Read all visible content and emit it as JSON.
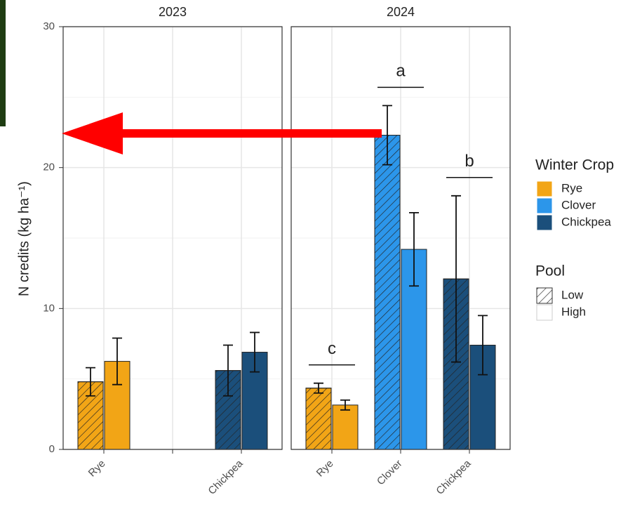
{
  "chart_data": {
    "type": "bar",
    "ylabel": "N credits (kg ha⁻¹)",
    "ylim": [
      0,
      30
    ],
    "yticks": [
      0,
      10,
      20,
      30
    ],
    "minor_yticks": [
      5,
      15,
      25
    ],
    "grid": true,
    "legend": {
      "title": "Winter Crop",
      "items": [
        {
          "name": "Rye",
          "color": "#f2a516"
        },
        {
          "name": "Clover",
          "color": "#2c96ea"
        },
        {
          "name": "Chickpea",
          "color": "#1b4f7b"
        }
      ]
    },
    "pool_legend_title": "Pool",
    "facets": [
      {
        "title": "2023",
        "categories": [
          "Rye",
          null,
          "Chickpea"
        ],
        "colors": [
          "#f2a516",
          null,
          "#1b4f7b"
        ],
        "series": [
          {
            "name": "Low",
            "hatch": true,
            "values": [
              4.8,
              null,
              5.6
            ],
            "errors": [
              1.0,
              null,
              1.8
            ]
          },
          {
            "name": "High",
            "hatch": false,
            "values": [
              6.25,
              null,
              6.9
            ],
            "errors": [
              1.65,
              null,
              1.4
            ]
          }
        ]
      },
      {
        "title": "2024",
        "categories": [
          "Rye",
          "Clover",
          "Chickpea"
        ],
        "colors": [
          "#f2a516",
          "#2c96ea",
          "#1b4f7b"
        ],
        "letters": [
          "c",
          "a",
          "b"
        ],
        "series": [
          {
            "name": "Low",
            "hatch": true,
            "values": [
              4.35,
              22.3,
              12.1
            ],
            "errors": [
              0.35,
              2.1,
              5.9
            ]
          },
          {
            "name": "High",
            "hatch": false,
            "values": [
              3.15,
              14.2,
              7.4
            ],
            "errors": [
              0.35,
              2.6,
              2.1
            ]
          }
        ]
      }
    ]
  }
}
